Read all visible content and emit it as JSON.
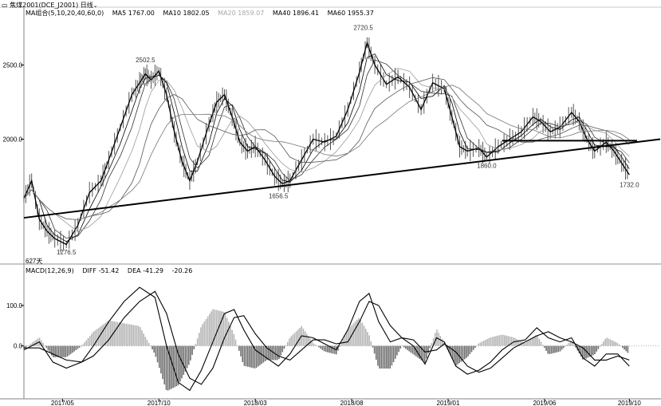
{
  "header": {
    "instrument": "焦煤2001(DCE_J2001)",
    "period": "日线",
    "chevron": "⌄",
    "icon": "chart-logo-icon"
  },
  "ma_legend": {
    "group": "MA组合(5,10,20,40,60,0)",
    "items": [
      {
        "label": "MA5 1767.00",
        "color": "#000000"
      },
      {
        "label": "MA10 1802.05",
        "color": "#000000"
      },
      {
        "label": "MA20 1859.07",
        "color": "#a8a8a8"
      },
      {
        "label": "MA40 1896.41",
        "color": "#000000"
      },
      {
        "label": "MA60 1955.37",
        "color": "#000000"
      }
    ]
  },
  "macd_legend": {
    "group": "MACD(12,26,9)",
    "items": [
      "DIFF -51.42",
      "DEA -41.29",
      "-20.26"
    ]
  },
  "bar_count_label": "627天",
  "chart_data": [
    {
      "type": "line",
      "name": "price",
      "y_ticks": [
        2500,
        2000
      ],
      "y_tick_labels": [
        "2500.0",
        "2000.0"
      ],
      "ylim": [
        1180,
        2820
      ],
      "x_labels": [
        "2017/05",
        "2017/10",
        "2018/03",
        "2018/08",
        "2019/01",
        "2019/06",
        "2019/10"
      ],
      "x_label_pos": [
        2,
        7,
        12,
        17,
        22,
        27,
        31.4
      ],
      "xlim": [
        0,
        33
      ],
      "close": [
        [
          0,
          1600
        ],
        [
          0.4,
          1720
        ],
        [
          0.8,
          1460
        ],
        [
          1.2,
          1380
        ],
        [
          1.6,
          1330
        ],
        [
          2.2,
          1290
        ],
        [
          2.8,
          1420
        ],
        [
          3.4,
          1640
        ],
        [
          4.0,
          1720
        ],
        [
          4.4,
          1860
        ],
        [
          5.0,
          2080
        ],
        [
          5.6,
          2300
        ],
        [
          6.0,
          2380
        ],
        [
          6.3,
          2440
        ],
        [
          6.6,
          2400
        ],
        [
          7.0,
          2460
        ],
        [
          7.4,
          2300
        ],
        [
          7.8,
          2050
        ],
        [
          8.2,
          1850
        ],
        [
          8.6,
          1720
        ],
        [
          9.0,
          1850
        ],
        [
          9.6,
          2100
        ],
        [
          10.0,
          2250
        ],
        [
          10.4,
          2300
        ],
        [
          10.8,
          2150
        ],
        [
          11.2,
          1980
        ],
        [
          11.6,
          1920
        ],
        [
          12.0,
          1950
        ],
        [
          12.5,
          1860
        ],
        [
          13.0,
          1750
        ],
        [
          13.4,
          1700
        ],
        [
          13.8,
          1720
        ],
        [
          14.4,
          1860
        ],
        [
          15.0,
          2000
        ],
        [
          15.6,
          1980
        ],
        [
          16.2,
          2020
        ],
        [
          16.8,
          2200
        ],
        [
          17.4,
          2450
        ],
        [
          17.8,
          2650
        ],
        [
          18.2,
          2500
        ],
        [
          18.8,
          2370
        ],
        [
          19.4,
          2420
        ],
        [
          20.0,
          2350
        ],
        [
          20.6,
          2200
        ],
        [
          21.2,
          2380
        ],
        [
          21.8,
          2340
        ],
        [
          22.2,
          2150
        ],
        [
          22.6,
          1950
        ],
        [
          23.0,
          1920
        ],
        [
          23.6,
          1940
        ],
        [
          24.0,
          1880
        ],
        [
          24.6,
          1950
        ],
        [
          25.2,
          2000
        ],
        [
          25.8,
          2050
        ],
        [
          26.4,
          2150
        ],
        [
          26.8,
          2120
        ],
        [
          27.3,
          2050
        ],
        [
          27.8,
          2080
        ],
        [
          28.4,
          2180
        ],
        [
          28.8,
          2120
        ],
        [
          29.2,
          2000
        ],
        [
          29.6,
          1920
        ],
        [
          30.2,
          1980
        ],
        [
          30.6,
          1920
        ],
        [
          31.0,
          1840
        ],
        [
          31.4,
          1760
        ]
      ],
      "annotations": [
        {
          "x": 2.2,
          "y": 1276.5,
          "text": "1276.5"
        },
        {
          "x": 6.3,
          "y": 2502.5,
          "text": "2502.5"
        },
        {
          "x": 13.2,
          "y": 1656.5,
          "text": "1656.5"
        },
        {
          "x": 17.6,
          "y": 2720.5,
          "text": "2720.5"
        },
        {
          "x": 24.0,
          "y": 1860.0,
          "text": "1860.0"
        },
        {
          "x": 31.4,
          "y": 1732.0,
          "text": "1732.0"
        }
      ],
      "trendlines": [
        {
          "from": [
            0,
            1470
          ],
          "to": [
            33,
            2000
          ]
        },
        {
          "from": [
            24.8,
            1990
          ],
          "to": [
            31.8,
            1990
          ]
        }
      ]
    },
    {
      "type": "bar",
      "name": "macd",
      "y_ticks": [
        100,
        0
      ],
      "y_tick_labels": [
        "100.0",
        "0.0"
      ],
      "ylim": [
        -125,
        175
      ],
      "xlim": [
        0,
        33
      ],
      "diff": [
        [
          0,
          -10
        ],
        [
          0.8,
          10
        ],
        [
          1.5,
          -40
        ],
        [
          2.2,
          -55
        ],
        [
          3.0,
          -40
        ],
        [
          3.6,
          0
        ],
        [
          4.4,
          60
        ],
        [
          5.2,
          110
        ],
        [
          6.0,
          145
        ],
        [
          6.8,
          120
        ],
        [
          7.4,
          0
        ],
        [
          8.0,
          -90
        ],
        [
          8.6,
          -110
        ],
        [
          9.2,
          -60
        ],
        [
          9.8,
          10
        ],
        [
          10.4,
          80
        ],
        [
          10.9,
          90
        ],
        [
          11.4,
          40
        ],
        [
          12.0,
          -10
        ],
        [
          12.6,
          -30
        ],
        [
          13.2,
          -50
        ],
        [
          13.8,
          -20
        ],
        [
          14.4,
          25
        ],
        [
          15.0,
          20
        ],
        [
          15.6,
          5
        ],
        [
          16.2,
          -10
        ],
        [
          16.8,
          40
        ],
        [
          17.4,
          110
        ],
        [
          17.9,
          130
        ],
        [
          18.4,
          60
        ],
        [
          19.0,
          10
        ],
        [
          19.6,
          20
        ],
        [
          20.2,
          0
        ],
        [
          20.8,
          -45
        ],
        [
          21.4,
          20
        ],
        [
          21.8,
          10
        ],
        [
          22.4,
          -50
        ],
        [
          23.0,
          -70
        ],
        [
          23.6,
          -60
        ],
        [
          24.2,
          -40
        ],
        [
          24.8,
          -10
        ],
        [
          25.4,
          10
        ],
        [
          26.0,
          15
        ],
        [
          26.6,
          45
        ],
        [
          27.2,
          20
        ],
        [
          27.8,
          10
        ],
        [
          28.4,
          20
        ],
        [
          29.0,
          -30
        ],
        [
          29.6,
          -50
        ],
        [
          30.2,
          -20
        ],
        [
          30.8,
          -20
        ],
        [
          31.4,
          -50
        ]
      ],
      "dea": [
        [
          0,
          -5
        ],
        [
          0.8,
          -5
        ],
        [
          1.5,
          -20
        ],
        [
          2.2,
          -35
        ],
        [
          3.0,
          -40
        ],
        [
          3.6,
          -25
        ],
        [
          4.4,
          15
        ],
        [
          5.2,
          70
        ],
        [
          6.0,
          110
        ],
        [
          6.8,
          135
        ],
        [
          7.4,
          80
        ],
        [
          8.0,
          -20
        ],
        [
          8.6,
          -80
        ],
        [
          9.2,
          -95
        ],
        [
          9.8,
          -55
        ],
        [
          10.4,
          20
        ],
        [
          10.9,
          70
        ],
        [
          11.4,
          75
        ],
        [
          12.0,
          30
        ],
        [
          12.6,
          -5
        ],
        [
          13.2,
          -25
        ],
        [
          13.8,
          -35
        ],
        [
          14.4,
          -10
        ],
        [
          15.0,
          15
        ],
        [
          15.6,
          15
        ],
        [
          16.2,
          5
        ],
        [
          16.8,
          10
        ],
        [
          17.4,
          60
        ],
        [
          17.9,
          110
        ],
        [
          18.4,
          100
        ],
        [
          19.0,
          50
        ],
        [
          19.6,
          20
        ],
        [
          20.2,
          15
        ],
        [
          20.8,
          -15
        ],
        [
          21.4,
          -10
        ],
        [
          21.8,
          5
        ],
        [
          22.4,
          -15
        ],
        [
          23.0,
          -50
        ],
        [
          23.6,
          -65
        ],
        [
          24.2,
          -55
        ],
        [
          24.8,
          -30
        ],
        [
          25.4,
          -5
        ],
        [
          26.0,
          10
        ],
        [
          26.6,
          25
        ],
        [
          27.2,
          35
        ],
        [
          27.8,
          20
        ],
        [
          28.4,
          10
        ],
        [
          29.0,
          -5
        ],
        [
          29.6,
          -35
        ],
        [
          30.2,
          -35
        ],
        [
          30.8,
          -25
        ],
        [
          31.4,
          -35
        ]
      ]
    }
  ]
}
